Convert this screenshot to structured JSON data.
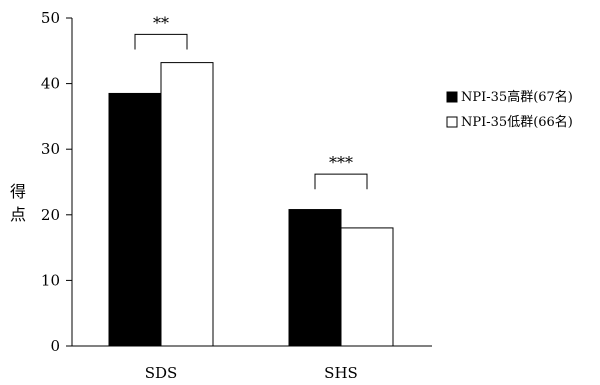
{
  "chart_data": {
    "type": "bar",
    "title": "",
    "xlabel": "",
    "ylabel": "得点",
    "ylim": [
      0,
      50
    ],
    "yticks": [
      0,
      10,
      20,
      30,
      40,
      50
    ],
    "grid": false,
    "legend_position": "right",
    "categories": [
      "SDS",
      "SHS"
    ],
    "series": [
      {
        "name": "NPI-35高群(67名)",
        "values": [
          38.5,
          20.8
        ],
        "fill": "#000000"
      },
      {
        "name": "NPI-35低群(66名)",
        "values": [
          43.2,
          18.0
        ],
        "fill": "#ffffff"
      }
    ],
    "significance": [
      {
        "category": "SDS",
        "label": "**",
        "level": 47.5,
        "drop": 2.3
      },
      {
        "category": "SHS",
        "label": "***",
        "level": 26.2,
        "drop": 2.3
      }
    ]
  }
}
